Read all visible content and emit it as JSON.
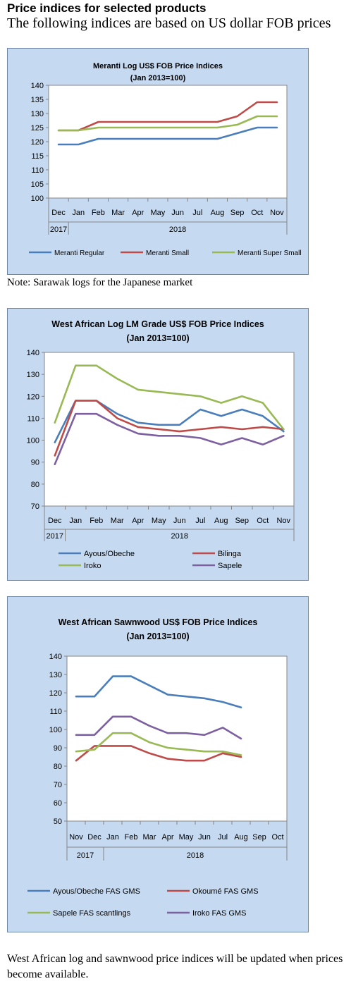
{
  "page": {
    "heading": "Price indices for selected products",
    "subheading": "The following indices are based on US dollar FOB prices",
    "note": "Note: Sarawak logs for the Japanese market",
    "footer": "West African log and sawnwood price indices will be updated when prices become available."
  },
  "colors": {
    "chart_background": "#c5d9f1",
    "plot_background": "#ffffff",
    "blue": "#4a7ebb",
    "red": "#be4b48",
    "green": "#98b954",
    "purple": "#7d60a0"
  },
  "chart_data": [
    {
      "type": "line",
      "title": "Meranti Log US$ FOB Price Indices",
      "subtitle": "(Jan 2013=100)",
      "categories": [
        "Dec",
        "Jan",
        "Feb",
        "Mar",
        "Apr",
        "May",
        "Jun",
        "Jul",
        "Aug",
        "Sep",
        "Oct",
        "Nov"
      ],
      "year_labels": [
        {
          "label": "2017",
          "from": 0,
          "to": 0
        },
        {
          "label": "2018",
          "from": 1,
          "to": 11
        }
      ],
      "ylim": [
        100,
        140
      ],
      "yticks": [
        100,
        105,
        110,
        115,
        120,
        125,
        130,
        135,
        140
      ],
      "grid": false,
      "legend_position": "bottom",
      "series": [
        {
          "name": "Meranti Regular",
          "color": "#4a7ebb",
          "values": [
            119,
            119,
            121,
            121,
            121,
            121,
            121,
            121,
            121,
            123,
            125,
            125
          ]
        },
        {
          "name": "Meranti Small",
          "color": "#be4b48",
          "values": [
            124,
            124,
            127,
            127,
            127,
            127,
            127,
            127,
            127,
            129,
            134,
            134
          ]
        },
        {
          "name": "Meranti Super Small",
          "color": "#98b954",
          "values": [
            124,
            124,
            125,
            125,
            125,
            125,
            125,
            125,
            125,
            126,
            129,
            129
          ]
        }
      ]
    },
    {
      "type": "line",
      "title": "West African Log LM Grade US$ FOB Price Indices",
      "subtitle": "(Jan 2013=100)",
      "categories": [
        "Dec",
        "Jan",
        "Feb",
        "Mar",
        "Apr",
        "May",
        "Jun",
        "Jul",
        "Aug",
        "Sep",
        "Oct",
        "Nov"
      ],
      "year_labels": [
        {
          "label": "2017",
          "from": 0,
          "to": 0
        },
        {
          "label": "2018",
          "from": 1,
          "to": 11
        }
      ],
      "ylim": [
        70,
        140
      ],
      "yticks": [
        70,
        80,
        90,
        100,
        110,
        120,
        130,
        140
      ],
      "grid": false,
      "legend_position": "bottom",
      "series": [
        {
          "name": "Ayous/Obeche",
          "color": "#4a7ebb",
          "values": [
            99,
            118,
            118,
            112,
            108,
            107,
            107,
            114,
            111,
            114,
            111,
            104
          ]
        },
        {
          "name": "Bilinga",
          "color": "#be4b48",
          "values": [
            93,
            118,
            118,
            110,
            106,
            105,
            104,
            105,
            106,
            105,
            106,
            105
          ]
        },
        {
          "name": "Iroko",
          "color": "#98b954",
          "values": [
            108,
            134,
            134,
            128,
            123,
            122,
            121,
            120,
            117,
            120,
            117,
            105
          ]
        },
        {
          "name": "Sapele",
          "color": "#7d60a0",
          "values": [
            89,
            112,
            112,
            107,
            103,
            102,
            102,
            101,
            98,
            101,
            98,
            102
          ]
        }
      ]
    },
    {
      "type": "line",
      "title": "West African Sawnwood US$ FOB Price Indices",
      "subtitle": "(Jan 2013=100)",
      "categories": [
        "Nov",
        "Dec",
        "Jan",
        "Feb",
        "Mar",
        "Apr",
        "May",
        "Jun",
        "Jul",
        "Aug",
        "Sep",
        "Oct"
      ],
      "year_labels": [
        {
          "label": "2017",
          "from": 0,
          "to": 1
        },
        {
          "label": "2018",
          "from": 2,
          "to": 11
        }
      ],
      "ylim": [
        50,
        140
      ],
      "yticks": [
        50,
        60,
        70,
        80,
        90,
        100,
        110,
        120,
        130,
        140
      ],
      "grid": false,
      "legend_position": "bottom",
      "series": [
        {
          "name": "Ayous/Obeche  FAS GMS",
          "color": "#4a7ebb",
          "values": [
            118,
            118,
            129,
            129,
            124,
            119,
            118,
            117,
            115,
            112,
            null,
            null
          ]
        },
        {
          "name": "Okoumé  FAS GMS",
          "color": "#be4b48",
          "values": [
            83,
            91,
            91,
            91,
            87,
            84,
            83,
            83,
            87,
            85,
            null,
            null
          ]
        },
        {
          "name": "Sapele FAS scantlings",
          "color": "#98b954",
          "values": [
            88,
            89,
            98,
            98,
            93,
            90,
            89,
            88,
            88,
            86,
            null,
            null
          ]
        },
        {
          "name": "Iroko FAS GMS",
          "color": "#7d60a0",
          "values": [
            97,
            97,
            107,
            107,
            102,
            98,
            98,
            97,
            101,
            95,
            null,
            null
          ]
        }
      ]
    }
  ]
}
